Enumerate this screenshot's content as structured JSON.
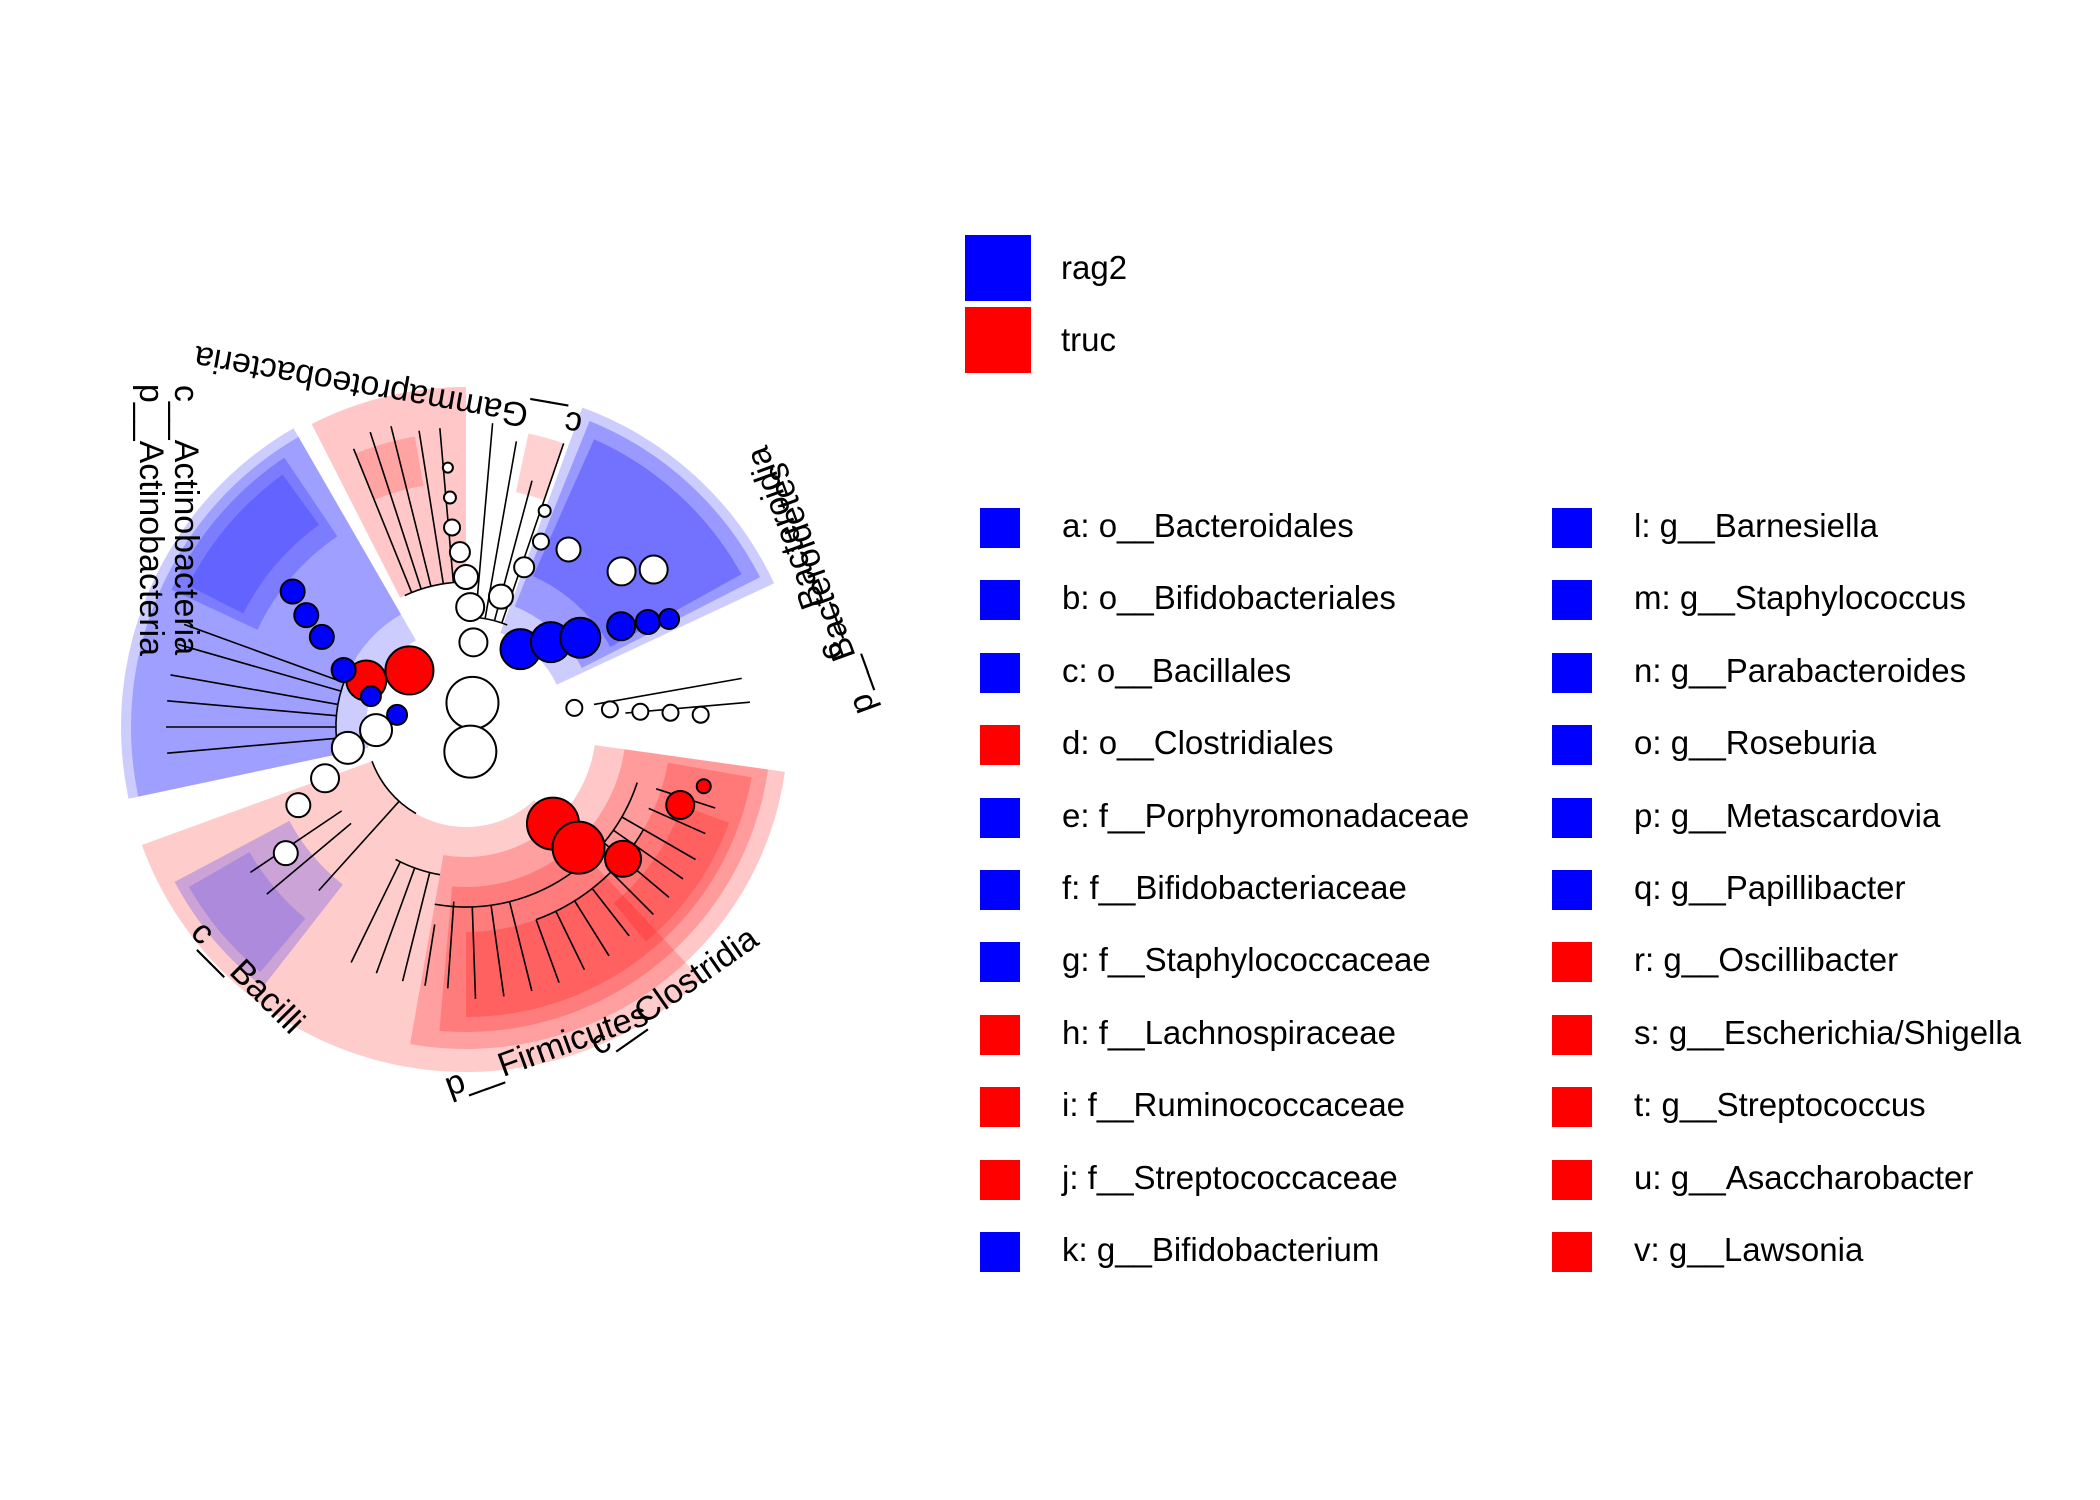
{
  "colors": {
    "rag2": "#0000FF",
    "truc": "#FF0000"
  },
  "classes": [
    {
      "name": "rag2",
      "color": "#0000FF"
    },
    {
      "name": "truc",
      "color": "#FF0000"
    }
  ],
  "clade_labels": {
    "c_gammaproteobacteria": "c__Gammaproteobacteria",
    "p_actinobacteria": "p__Actinobacteria",
    "c_actinobacteria": "c__Actinobacteria",
    "p_bacteroidetes": "p__Bacteroidetes",
    "c_bacteroidia": "c__Bacteroidia",
    "p_firmicutes": "p__Firmicutes",
    "c_clostridia": "c__Clostridia",
    "c_bacilli": "c__Bacilli"
  },
  "node_letters": [
    "a",
    "b",
    "c",
    "d",
    "e",
    "f",
    "g",
    "h",
    "i",
    "j",
    "k",
    "l",
    "m",
    "n",
    "o",
    "p",
    "q",
    "r",
    "s",
    "t",
    "u",
    "v"
  ],
  "key_left": [
    {
      "text": "a: o__Bacteroidales",
      "color": "#0000FF"
    },
    {
      "text": "b: o__Bifidobacteriales",
      "color": "#0000FF"
    },
    {
      "text": "c: o__Bacillales",
      "color": "#0000FF"
    },
    {
      "text": "d: o__Clostridiales",
      "color": "#FF0000"
    },
    {
      "text": "e: f__Porphyromonadaceae",
      "color": "#0000FF"
    },
    {
      "text": "f: f__Bifidobacteriaceae",
      "color": "#0000FF"
    },
    {
      "text": "g: f__Staphylococcaceae",
      "color": "#0000FF"
    },
    {
      "text": "h: f__Lachnospiraceae",
      "color": "#FF0000"
    },
    {
      "text": "i: f__Ruminococcaceae",
      "color": "#FF0000"
    },
    {
      "text": "j: f__Streptococcaceae",
      "color": "#FF0000"
    },
    {
      "text": "k: g__Bifidobacterium",
      "color": "#0000FF"
    }
  ],
  "key_right": [
    {
      "text": "l: g__Barnesiella",
      "color": "#0000FF"
    },
    {
      "text": "m: g__Staphylococcus",
      "color": "#0000FF"
    },
    {
      "text": "n: g__Parabacteroides",
      "color": "#0000FF"
    },
    {
      "text": "o: g__Roseburia",
      "color": "#0000FF"
    },
    {
      "text": "p: g__Metascardovia",
      "color": "#0000FF"
    },
    {
      "text": "q: g__Papillibacter",
      "color": "#0000FF"
    },
    {
      "text": "r: g__Oscillibacter",
      "color": "#FF0000"
    },
    {
      "text": "s: g__Escherichia/Shigella",
      "color": "#FF0000"
    },
    {
      "text": "t: g__Streptococcus",
      "color": "#FF0000"
    },
    {
      "text": "u: g__Asaccharobacter",
      "color": "#FF0000"
    },
    {
      "text": "v: g__Lawsonia",
      "color": "#FF0000"
    }
  ]
}
